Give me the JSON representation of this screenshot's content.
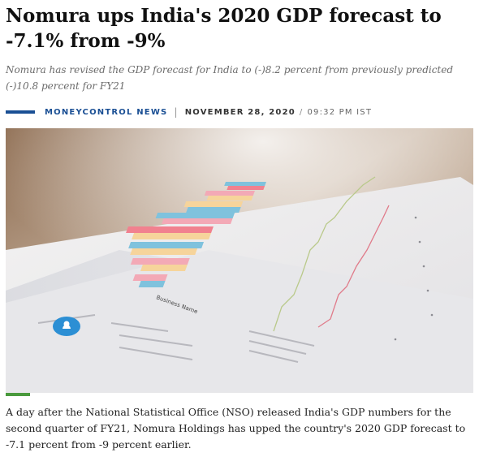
{
  "article": {
    "headline": "Nomura ups India's 2020 GDP forecast to -7.1% from -9%",
    "summary": "Nomura has revised the GDP forecast for India to (-)8.2 percent from previously predicted (-)10.8 percent for FY21",
    "byline": {
      "source": "MONEYCONTROL NEWS",
      "date": "NOVEMBER 28, 2020",
      "time": "09:32 PM IST"
    },
    "body": "A day after the National Statistical Office (NSO) released India's GDP numbers for the second quarter of FY21, Nomura Holdings has upped the country's 2020 GDP forecast to -7.1 percent from -9 percent earlier."
  },
  "colors": {
    "byline_accent": "#1a4f94",
    "image_accent": "#4a9a3d"
  },
  "image": {
    "icon": "photo-of-printed-bar-chart-report",
    "printed_label": "Business Name"
  }
}
